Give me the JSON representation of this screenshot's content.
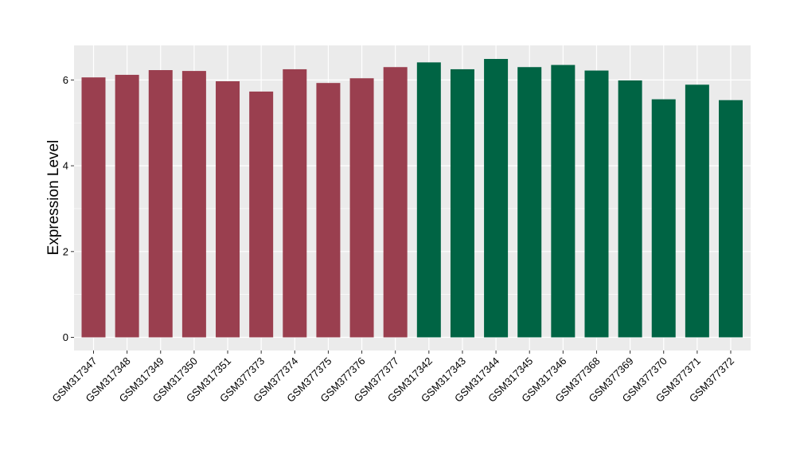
{
  "chart_data": {
    "type": "bar",
    "title": "",
    "xlabel": "",
    "ylabel": "Expression Level",
    "ylim": [
      0,
      6.8
    ],
    "yticks": [
      0,
      2,
      4,
      6
    ],
    "grid": true,
    "legend": "none",
    "categories": [
      "GSM317347",
      "GSM317348",
      "GSM317349",
      "GSM317350",
      "GSM317351",
      "GSM377373",
      "GSM377374",
      "GSM377375",
      "GSM377376",
      "GSM377377",
      "GSM317342",
      "GSM317343",
      "GSM317344",
      "GSM317345",
      "GSM317346",
      "GSM377368",
      "GSM377369",
      "GSM377370",
      "GSM377371",
      "GSM377372"
    ],
    "values": [
      6.06,
      6.12,
      6.23,
      6.21,
      5.97,
      5.73,
      6.25,
      5.93,
      6.04,
      6.3,
      6.41,
      6.25,
      6.49,
      6.3,
      6.35,
      6.22,
      5.99,
      5.55,
      5.89,
      5.53
    ],
    "groups": [
      "red",
      "red",
      "red",
      "red",
      "red",
      "red",
      "red",
      "red",
      "red",
      "red",
      "green",
      "green",
      "green",
      "green",
      "green",
      "green",
      "green",
      "green",
      "green",
      "green"
    ],
    "colors": {
      "red": "#9A3F4F",
      "green": "#006444"
    },
    "panel_background": "#EBEBEB",
    "grid_color": "#FFFFFF"
  }
}
